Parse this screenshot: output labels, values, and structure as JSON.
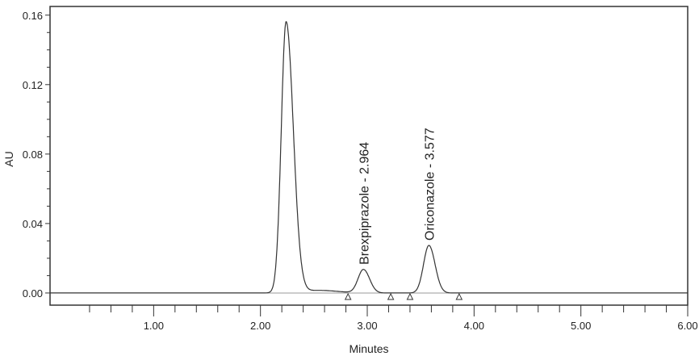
{
  "chart_data": {
    "type": "line",
    "title": "",
    "xlabel": "Minutes",
    "ylabel": "AU",
    "xlim": [
      0.03,
      6.0
    ],
    "ylim": [
      -0.007,
      0.165
    ],
    "xticks": [
      1.0,
      2.0,
      3.0,
      4.0,
      5.0,
      6.0
    ],
    "xtick_labels": [
      "1.00",
      "2.00",
      "3.00",
      "4.00",
      "5.00",
      "6.00"
    ],
    "yticks": [
      0.0,
      0.04,
      0.08,
      0.12,
      0.16
    ],
    "ytick_labels": [
      "0.00",
      "0.04",
      "0.08",
      "0.12",
      "0.16"
    ],
    "grid": false,
    "peaks": [
      {
        "rt": 2.24,
        "height": 0.156,
        "label": ""
      },
      {
        "rt": 2.964,
        "height": 0.0135,
        "label": "Brexpiprazole - 2.964"
      },
      {
        "rt": 3.577,
        "height": 0.0274,
        "label": "Oriconazole - 3.577"
      }
    ],
    "integration_markers": [
      2.82,
      3.22,
      3.4,
      3.86
    ],
    "series_color": "#333333",
    "baseline_color": "#999999"
  }
}
